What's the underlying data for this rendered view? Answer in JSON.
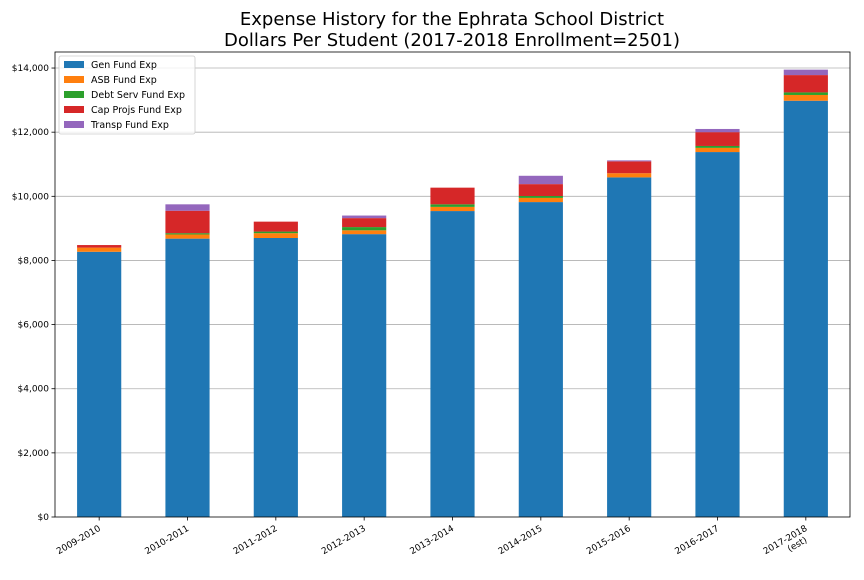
{
  "chart_data": {
    "type": "bar",
    "stacked": true,
    "title": "Expense History for the Ephrata School District",
    "subtitle": "Dollars Per Student (2017-2018 Enrollment=2501)",
    "xlabel": "",
    "ylabel": "",
    "categories": [
      "2009-2010",
      "2010-2011",
      "2011-2012",
      "2012-2013",
      "2013-2014",
      "2014-2015",
      "2015-2016",
      "2016-2017",
      "2017-2018\n(est)"
    ],
    "ylim": [
      0,
      14500
    ],
    "yticks": [
      0,
      2000,
      4000,
      6000,
      8000,
      10000,
      12000,
      14000
    ],
    "ytick_labels": [
      "$0",
      "$2,000",
      "$4,000",
      "$6,000",
      "$8,000",
      "$10,000",
      "$12,000",
      "$14,000"
    ],
    "grid": "y",
    "legend_position": "top-left",
    "series": [
      {
        "name": "Gen Fund Exp",
        "color": "#1f77b4",
        "values": [
          8270,
          8680,
          8700,
          8820,
          9540,
          9820,
          10590,
          11380,
          12980
        ]
      },
      {
        "name": "ASB Fund Exp",
        "color": "#ff7f0e",
        "values": [
          130,
          130,
          150,
          120,
          130,
          130,
          130,
          130,
          180
        ]
      },
      {
        "name": "Debt Serv Fund Exp",
        "color": "#2ca02c",
        "values": [
          0,
          40,
          50,
          100,
          80,
          60,
          0,
          60,
          80
        ]
      },
      {
        "name": "Cap Projs Fund Exp",
        "color": "#d62728",
        "values": [
          80,
          700,
          310,
          280,
          520,
          370,
          370,
          430,
          540
        ]
      },
      {
        "name": "Transp Fund Exp",
        "color": "#9467bd",
        "values": [
          0,
          200,
          0,
          80,
          0,
          260,
          30,
          100,
          170
        ]
      }
    ]
  }
}
